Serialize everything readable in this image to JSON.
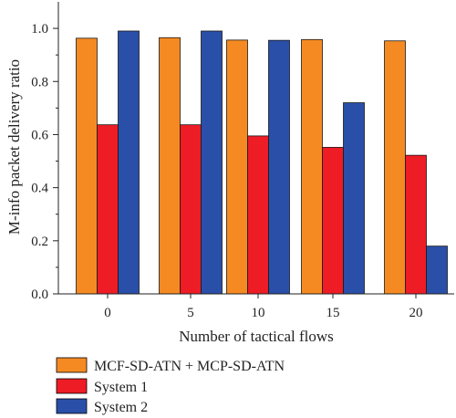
{
  "chart_data": {
    "type": "bar",
    "xlabel": "Number of tactical flows",
    "ylabel": "M-info packet delivery ratio",
    "categories": [
      "0",
      "5",
      "10",
      "15",
      "20"
    ],
    "ylim": [
      0,
      1.1
    ],
    "yticks": [
      "0.0",
      "0.2",
      "0.4",
      "0.6",
      "0.8",
      "1.0"
    ],
    "series": [
      {
        "name": "MCF-SD-ATN + MCP-SD-ATN",
        "color": "#f58a23",
        "values": [
          0.963,
          0.965,
          0.956,
          0.958,
          0.953
        ]
      },
      {
        "name": "System 1",
        "color": "#ee1c25",
        "values": [
          0.637,
          0.637,
          0.595,
          0.552,
          0.522
        ]
      },
      {
        "name": "System 2",
        "color": "#2a4fa8",
        "values": [
          0.99,
          0.99,
          0.955,
          0.72,
          0.18
        ]
      }
    ],
    "legend_position": "bottom-left",
    "grid": false
  }
}
